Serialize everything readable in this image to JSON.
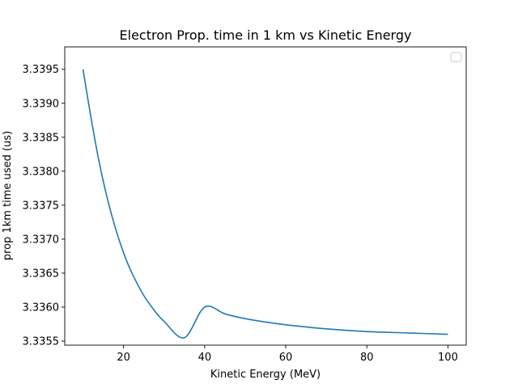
{
  "chart_data": {
    "type": "line",
    "title": "Electron Prop. time in 1 km vs Kinetic Energy",
    "xlabel": "Kinetic Energy (MeV)",
    "ylabel": "prop 1km time used (us)",
    "xlim": [
      5.5,
      104.5
    ],
    "ylim": [
      3.33544,
      3.33983
    ],
    "x_ticks": [
      20,
      40,
      60,
      80,
      100
    ],
    "y_ticks": [
      3.3355,
      3.336,
      3.3365,
      3.337,
      3.3375,
      3.338,
      3.3385,
      3.339,
      3.3395
    ],
    "x_tick_labels": [
      "20",
      "40",
      "60",
      "80",
      "100"
    ],
    "y_tick_labels": [
      "3.3355",
      "3.3360",
      "3.3365",
      "3.3370",
      "3.3375",
      "3.3380",
      "3.3385",
      "3.3390",
      "3.3395"
    ],
    "grid": false,
    "legend": "top-right",
    "series": [
      {
        "color": "#1f77b4",
        "x": [
          10,
          12,
          14,
          16,
          18,
          20,
          22,
          25,
          28,
          30,
          35,
          40,
          45,
          50,
          55,
          60,
          70,
          80,
          90,
          100
        ],
        "values": [
          3.3395,
          3.33878,
          3.33813,
          3.3376,
          3.33716,
          3.3368,
          3.33651,
          3.33617,
          3.33592,
          3.33579,
          3.33555,
          3.336,
          3.3359,
          3.33583,
          3.33578,
          3.33574,
          3.33568,
          3.33564,
          3.33562,
          3.3356
        ]
      }
    ]
  }
}
